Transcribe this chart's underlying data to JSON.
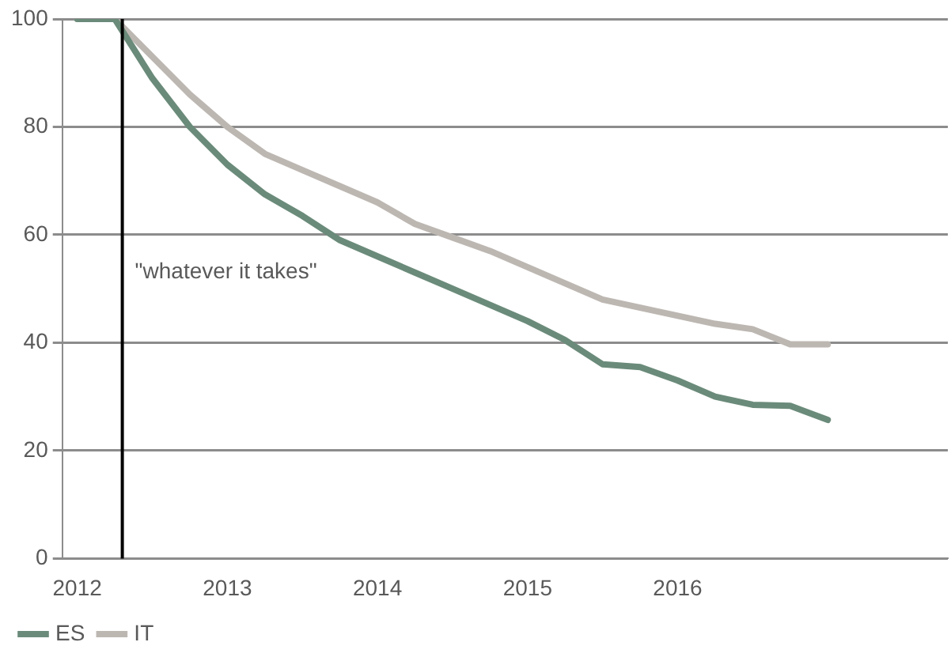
{
  "chart_data": {
    "type": "line",
    "x": [
      2012,
      2012.25,
      2012.5,
      2012.75,
      2013,
      2013.25,
      2013.5,
      2013.75,
      2014,
      2014.25,
      2014.5,
      2014.75,
      2015,
      2015.25,
      2015.5,
      2015.75,
      2016,
      2016.25,
      2016.5,
      2016.75,
      2017
    ],
    "series": [
      {
        "name": "ES",
        "color": "#6b8b7a",
        "values": [
          100,
          100,
          89,
          80,
          73,
          67.5,
          63.5,
          59,
          56,
          53,
          50,
          47,
          44,
          40.5,
          36,
          35.5,
          33,
          30,
          28.5,
          28.3,
          25.7
        ]
      },
      {
        "name": "IT",
        "color": "#bdb7b2",
        "values": [
          100,
          100,
          93,
          86,
          80,
          75,
          72,
          69,
          66,
          62,
          59.5,
          57,
          54,
          51,
          48,
          46.5,
          45,
          43.5,
          42.5,
          39.7,
          39.7
        ]
      }
    ],
    "xlim": [
      2011.9,
      2017.8
    ],
    "xticks": [
      2012,
      2013,
      2014,
      2015,
      2016
    ],
    "ylim": [
      0,
      100
    ],
    "yticks": [
      0,
      20,
      40,
      60,
      80,
      100
    ],
    "grid": "y",
    "legend": "bottom left",
    "marker": "none",
    "line_style": "solid",
    "ref_lines": [
      {
        "axis": "x",
        "value": 2012.3,
        "label": "\"whatever it takes\"",
        "color": "#000000"
      }
    ]
  }
}
